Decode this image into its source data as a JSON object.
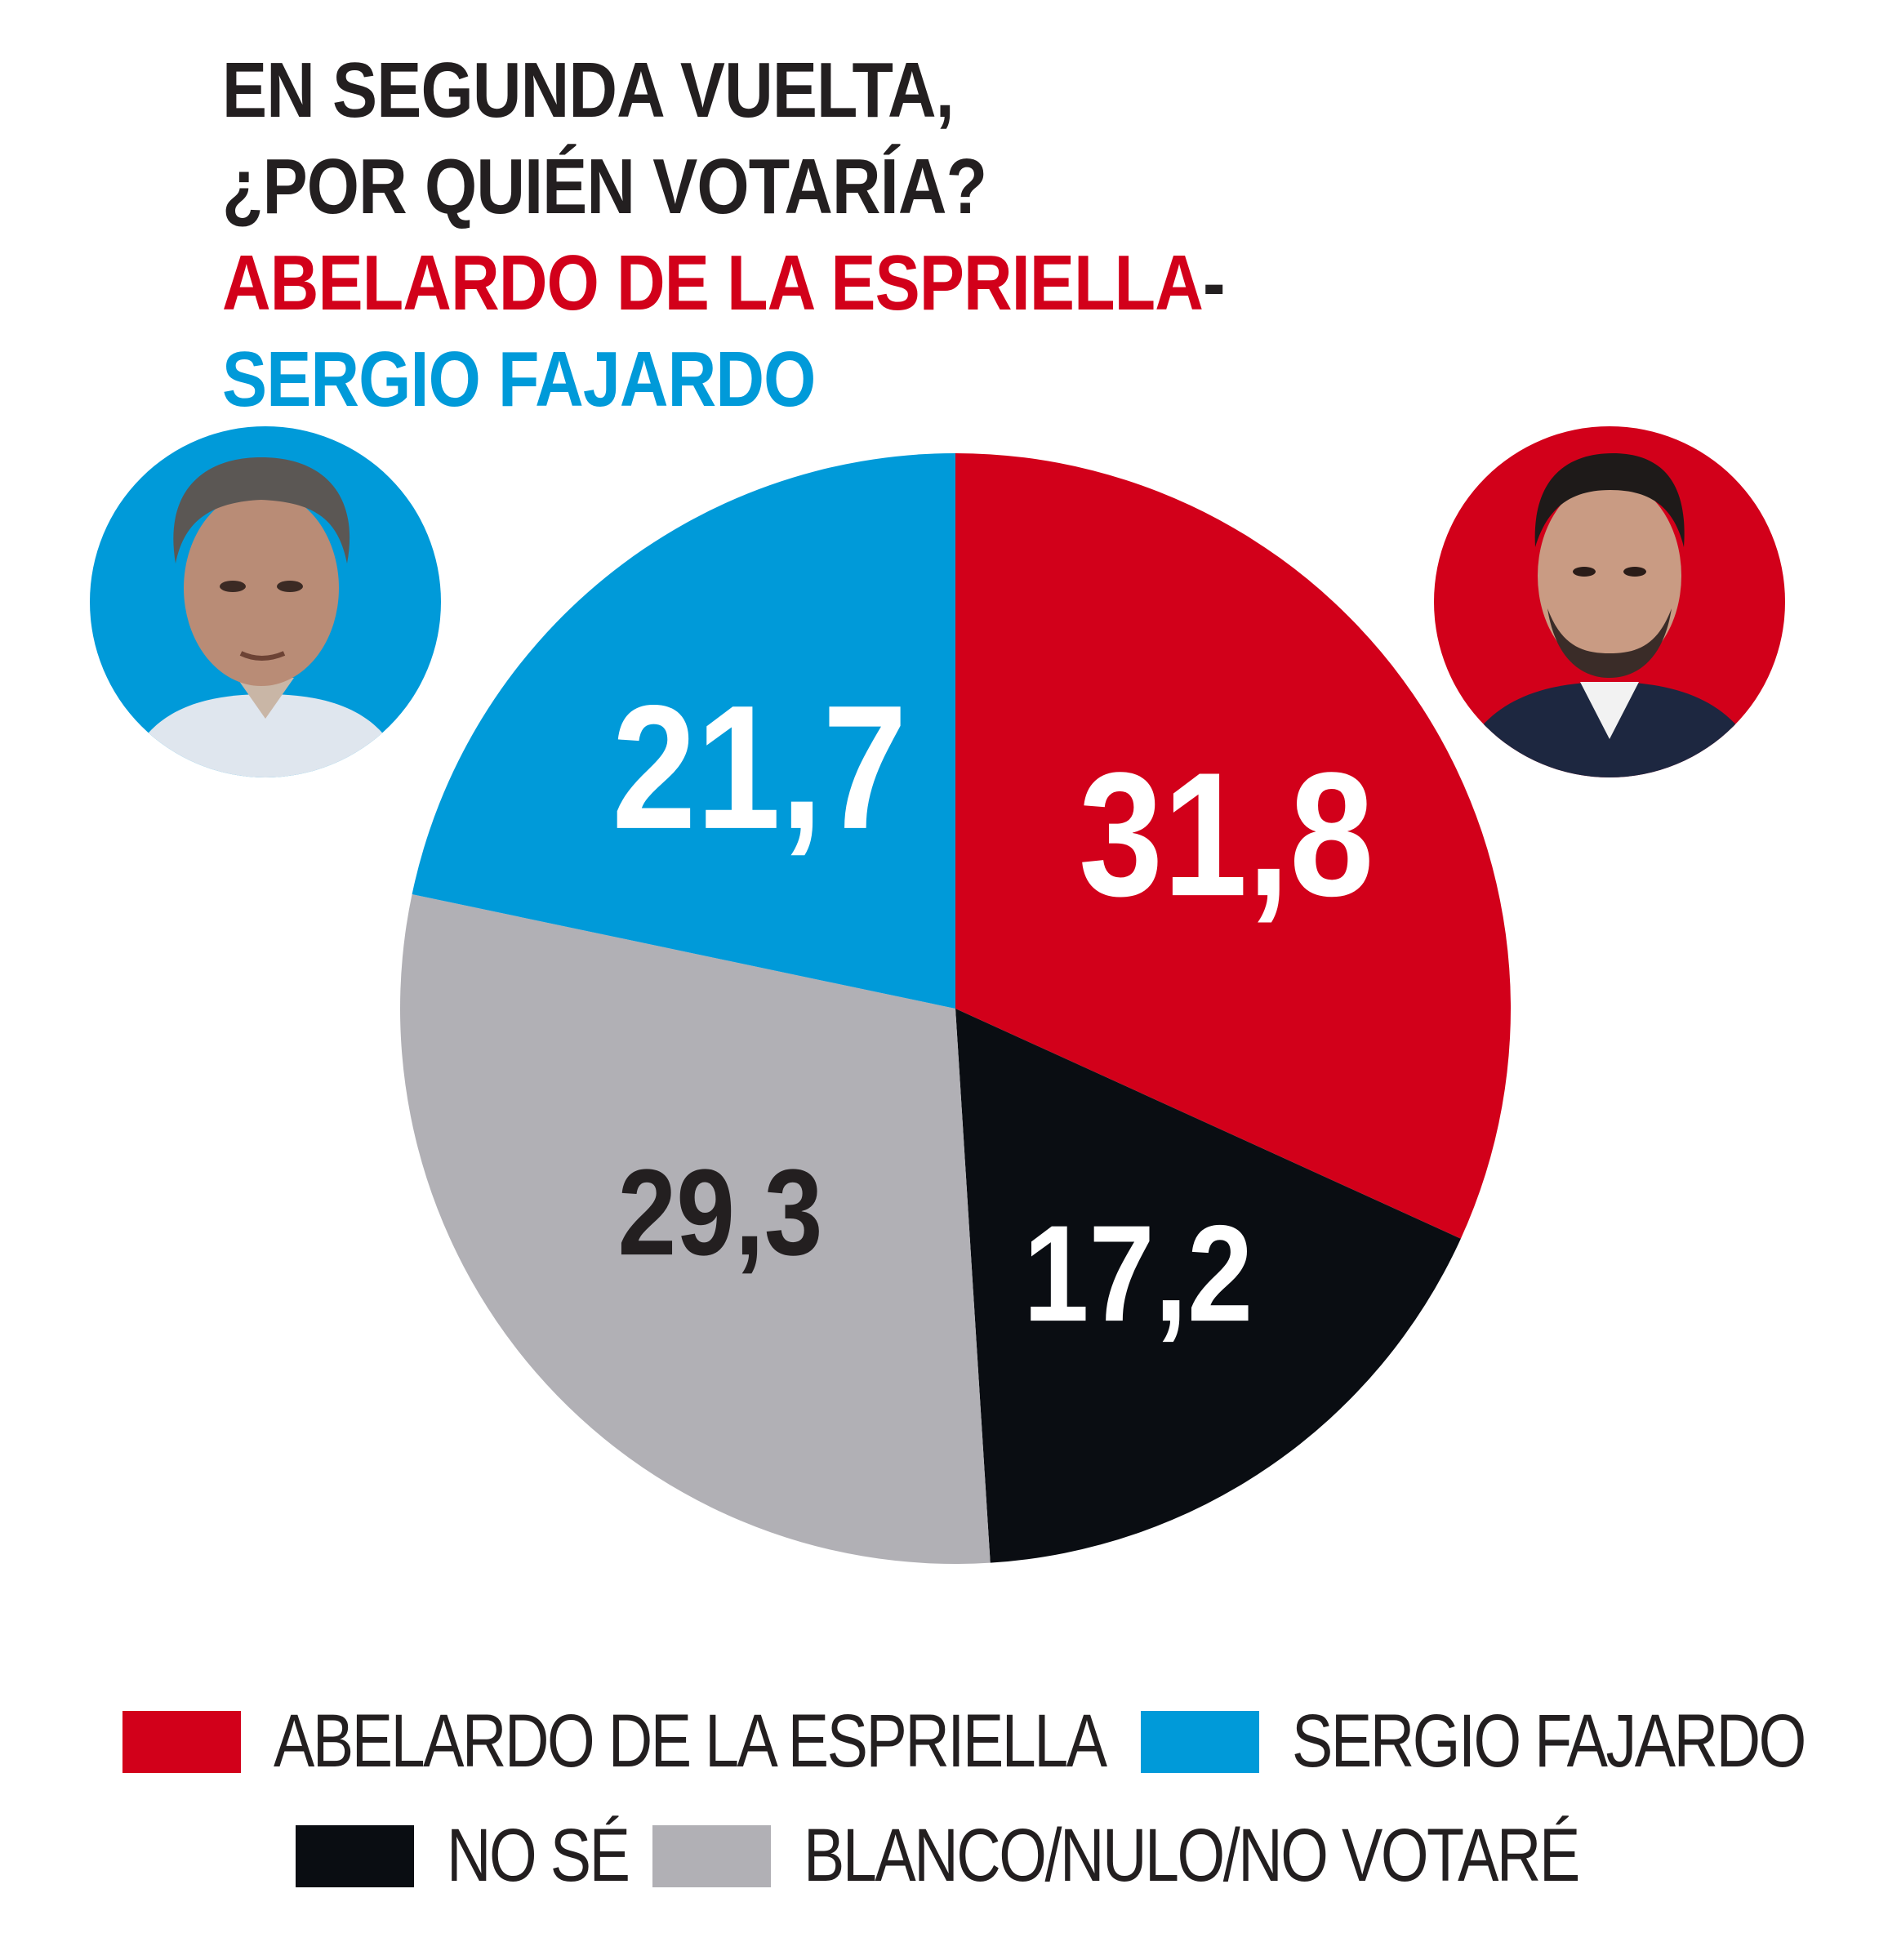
{
  "header": {
    "line1": "EN SEGUNDA VUELTA,",
    "line2": "¿POR QUIÉN VOTARÍA?",
    "line3_red": "ABELARDO DE LA ESPRIELLA",
    "line3_dash": "-",
    "line4_blue": "SERGIO FAJARDO"
  },
  "colors": {
    "red": "#d2001a",
    "blue": "#009ad9",
    "black": "#0a0d12",
    "gray": "#b1b0b5",
    "text_dark": "#231f20",
    "white": "#ffffff"
  },
  "photos": {
    "left": "sergio-fajardo-portrait",
    "right": "abelardo-de-la-espriella-portrait"
  },
  "chart_data": {
    "type": "pie",
    "title": "EN SEGUNDA VUELTA, ¿POR QUIÉN VOTARÍA? ABELARDO DE LA ESPRIELLA- SERGIO FAJARDO",
    "start": "top",
    "direction": "clockwise",
    "slices": [
      {
        "name": "ABELARDO DE LA ESPRIELLA",
        "value": 31.8,
        "label": "31,8",
        "color": "#d2001a",
        "label_color": "#ffffff"
      },
      {
        "name": "NO SÉ",
        "value": 17.2,
        "label": "17,2",
        "color": "#0a0d12",
        "label_color": "#ffffff"
      },
      {
        "name": "BLANCO/NULO/NO VOTARÉ",
        "value": 29.3,
        "label": "29,3",
        "color": "#b1b0b5",
        "label_color": "#231f20"
      },
      {
        "name": "SERGIO FAJARDO",
        "value": 21.7,
        "label": "21,7",
        "color": "#009ad9",
        "label_color": "#ffffff"
      }
    ]
  },
  "legend": {
    "items": [
      {
        "label": "ABELARDO DE LA ESPRIELLA",
        "color": "#d2001a"
      },
      {
        "label": "SERGIO FAJARDO",
        "color": "#009ad9"
      },
      {
        "label": "NO SÉ",
        "color": "#0a0d12"
      },
      {
        "label": "BLANCO/NULO/NO VOTARÉ",
        "color": "#b1b0b5"
      }
    ]
  }
}
